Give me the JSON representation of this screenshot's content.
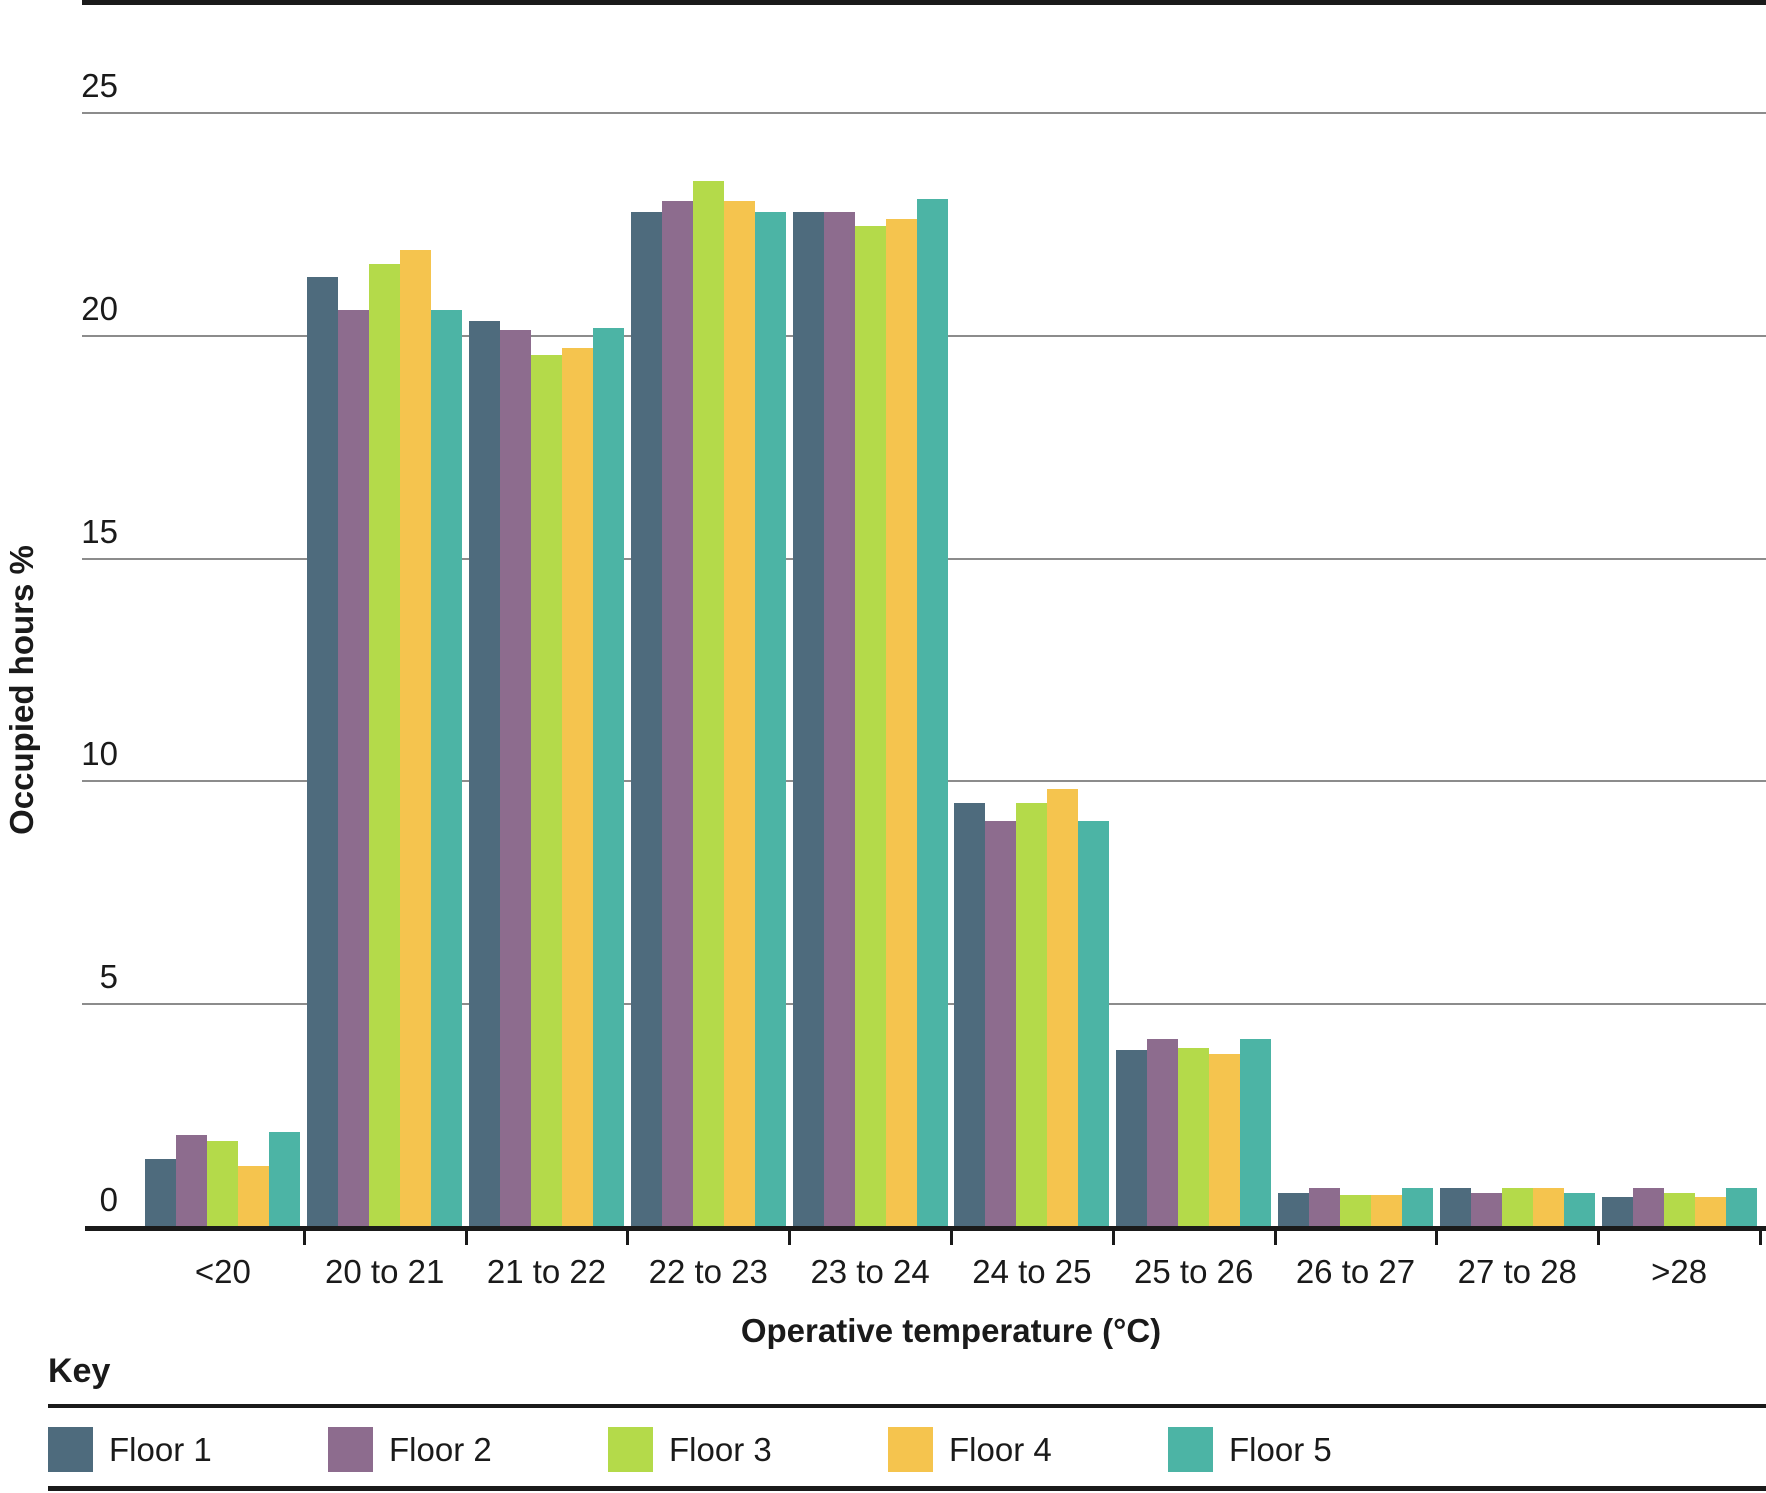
{
  "key": {
    "label": "Key"
  },
  "chart_data": {
    "type": "bar",
    "title": "",
    "xlabel": "Operative temperature (°C)",
    "ylabel": "Occupied hours %",
    "ylim": [
      0,
      25
    ],
    "yticks": [
      25,
      20,
      15,
      10,
      5,
      0
    ],
    "grid": "horizontal",
    "legend_position": "bottom",
    "categories": [
      "<20",
      "20 to 21",
      "21 to 22",
      "22 to 23",
      "23 to 24",
      "24 to 25",
      "25 to 26",
      "26 to 27",
      "27 to 28",
      ">28"
    ],
    "series": [
      {
        "name": "Floor 1",
        "color": "#4e6b7d",
        "values": [
          1.5,
          21.3,
          20.3,
          22.75,
          22.75,
          9.5,
          3.95,
          0.75,
          0.85,
          0.65
        ]
      },
      {
        "name": "Floor 2",
        "color": "#8d6c8e",
        "values": [
          2.05,
          20.55,
          20.1,
          23.0,
          22.75,
          9.1,
          4.2,
          0.85,
          0.75,
          0.85
        ]
      },
      {
        "name": "Floor 3",
        "color": "#b4da4a",
        "values": [
          1.9,
          21.6,
          19.55,
          23.45,
          22.45,
          9.5,
          4.0,
          0.7,
          0.85,
          0.75
        ]
      },
      {
        "name": "Floor 4",
        "color": "#f5c44e",
        "values": [
          1.35,
          21.9,
          19.7,
          23.0,
          22.6,
          9.8,
          3.85,
          0.7,
          0.85,
          0.65
        ]
      },
      {
        "name": "Floor 5",
        "color": "#4cb4a5",
        "values": [
          2.1,
          20.55,
          20.15,
          22.75,
          23.05,
          9.1,
          4.2,
          0.85,
          0.75,
          0.85
        ]
      }
    ],
    "axis_colors": {
      "rule": "#1a1a1a",
      "gridline": "#8c8c8c"
    }
  }
}
